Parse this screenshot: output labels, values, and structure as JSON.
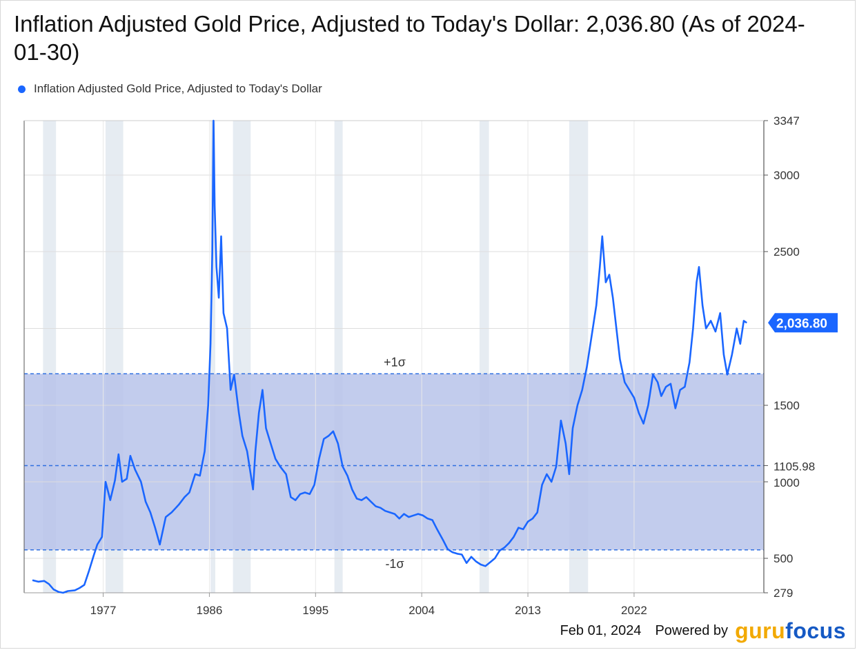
{
  "title": "Inflation Adjusted Gold Price, Adjusted to Today's Dollar: 2,036.80 (As of 2024-01-30)",
  "legend_label": "Inflation Adjusted Gold Price, Adjusted to Today's Dollar",
  "footer": {
    "date": "Feb 01, 2024",
    "powered_by": "Powered by",
    "logo_part1": "guru",
    "logo_part2": "focus"
  },
  "colors": {
    "line": "#1a66ff",
    "band": "#b7c3ea",
    "recession": "#e6ecf2",
    "dashed": "#2f6fe0",
    "callout": "#1a66ff"
  },
  "chart_data": {
    "type": "line",
    "title": "Inflation Adjusted Gold Price, Adjusted to Today's Dollar: 2,036.80 (As of 2024-01-30)",
    "series": [
      {
        "name": "Inflation Adjusted Gold Price, Adjusted to Today's Dollar",
        "points": [
          [
            1971.0,
            360
          ],
          [
            1971.5,
            350
          ],
          [
            1972.0,
            355
          ],
          [
            1972.4,
            335
          ],
          [
            1972.8,
            300
          ],
          [
            1973.2,
            285
          ],
          [
            1973.6,
            279
          ],
          [
            1974.0,
            290
          ],
          [
            1974.6,
            295
          ],
          [
            1975.0,
            310
          ],
          [
            1975.4,
            330
          ],
          [
            1975.8,
            420
          ],
          [
            1976.2,
            520
          ],
          [
            1976.5,
            590
          ],
          [
            1976.9,
            640
          ],
          [
            1977.2,
            1000
          ],
          [
            1977.6,
            880
          ],
          [
            1978.0,
            1010
          ],
          [
            1978.3,
            1180
          ],
          [
            1978.6,
            1000
          ],
          [
            1979.0,
            1020
          ],
          [
            1979.3,
            1170
          ],
          [
            1979.7,
            1080
          ],
          [
            1980.2,
            1000
          ],
          [
            1980.6,
            870
          ],
          [
            1981.0,
            800
          ],
          [
            1981.4,
            700
          ],
          [
            1981.8,
            590
          ],
          [
            1982.3,
            770
          ],
          [
            1982.8,
            800
          ],
          [
            1983.4,
            850
          ],
          [
            1983.9,
            900
          ],
          [
            1984.3,
            930
          ],
          [
            1984.8,
            1050
          ],
          [
            1985.2,
            1040
          ],
          [
            1985.6,
            1200
          ],
          [
            1985.9,
            1500
          ],
          [
            1986.1,
            1900
          ],
          [
            1986.25,
            2500
          ],
          [
            1986.35,
            3347
          ],
          [
            1986.45,
            2800
          ],
          [
            1986.6,
            2400
          ],
          [
            1986.8,
            2200
          ],
          [
            1987.0,
            2600
          ],
          [
            1987.2,
            2100
          ],
          [
            1987.5,
            2000
          ],
          [
            1987.8,
            1600
          ],
          [
            1988.1,
            1700
          ],
          [
            1988.5,
            1450
          ],
          [
            1988.8,
            1300
          ],
          [
            1989.2,
            1200
          ],
          [
            1989.5,
            1050
          ],
          [
            1989.7,
            950
          ],
          [
            1989.9,
            1200
          ],
          [
            1990.2,
            1450
          ],
          [
            1990.5,
            1600
          ],
          [
            1990.8,
            1350
          ],
          [
            1991.2,
            1250
          ],
          [
            1991.6,
            1150
          ],
          [
            1992.0,
            1100
          ],
          [
            1992.5,
            1050
          ],
          [
            1992.9,
            900
          ],
          [
            1993.3,
            880
          ],
          [
            1993.7,
            920
          ],
          [
            1994.1,
            930
          ],
          [
            1994.5,
            920
          ],
          [
            1994.9,
            980
          ],
          [
            1995.3,
            1150
          ],
          [
            1995.7,
            1280
          ],
          [
            1996.1,
            1300
          ],
          [
            1996.5,
            1330
          ],
          [
            1996.9,
            1250
          ],
          [
            1997.3,
            1100
          ],
          [
            1997.7,
            1040
          ],
          [
            1998.1,
            950
          ],
          [
            1998.5,
            890
          ],
          [
            1998.9,
            880
          ],
          [
            1999.3,
            900
          ],
          [
            1999.7,
            870
          ],
          [
            2000.1,
            840
          ],
          [
            2000.5,
            830
          ],
          [
            2000.9,
            810
          ],
          [
            2001.3,
            800
          ],
          [
            2001.7,
            790
          ],
          [
            2002.1,
            760
          ],
          [
            2002.5,
            790
          ],
          [
            2002.9,
            770
          ],
          [
            2003.3,
            780
          ],
          [
            2003.7,
            790
          ],
          [
            2004.1,
            780
          ],
          [
            2004.5,
            760
          ],
          [
            2004.9,
            750
          ],
          [
            2005.3,
            690
          ],
          [
            2005.8,
            620
          ],
          [
            2006.2,
            560
          ],
          [
            2006.6,
            540
          ],
          [
            2007.0,
            530
          ],
          [
            2007.4,
            525
          ],
          [
            2007.8,
            470
          ],
          [
            2008.2,
            510
          ],
          [
            2008.6,
            480
          ],
          [
            2009.0,
            460
          ],
          [
            2009.4,
            450
          ],
          [
            2009.8,
            475
          ],
          [
            2010.2,
            500
          ],
          [
            2010.6,
            550
          ],
          [
            2011.0,
            570
          ],
          [
            2011.4,
            600
          ],
          [
            2011.8,
            640
          ],
          [
            2012.2,
            700
          ],
          [
            2012.6,
            690
          ],
          [
            2013.0,
            740
          ],
          [
            2013.4,
            760
          ],
          [
            2013.8,
            800
          ],
          [
            2014.2,
            980
          ],
          [
            2014.6,
            1050
          ],
          [
            2015.0,
            1000
          ],
          [
            2015.4,
            1100
          ],
          [
            2015.8,
            1400
          ],
          [
            2016.2,
            1250
          ],
          [
            2016.5,
            1050
          ],
          [
            2016.8,
            1350
          ],
          [
            2017.2,
            1500
          ],
          [
            2017.6,
            1600
          ],
          [
            2018.0,
            1750
          ],
          [
            2018.4,
            1950
          ],
          [
            2018.8,
            2150
          ],
          [
            2019.1,
            2400
          ],
          [
            2019.3,
            2600
          ],
          [
            2019.6,
            2300
          ],
          [
            2019.9,
            2350
          ],
          [
            2020.2,
            2200
          ],
          [
            2020.5,
            2000
          ],
          [
            2020.8,
            1800
          ],
          [
            2021.2,
            1650
          ],
          [
            2021.6,
            1600
          ],
          [
            2022.0,
            1550
          ],
          [
            2022.4,
            1450
          ],
          [
            2022.8,
            1380
          ],
          [
            2023.2,
            1500
          ],
          [
            2023.6,
            1700
          ],
          [
            2024.0,
            1650
          ],
          [
            2024.3,
            1560
          ],
          [
            2024.7,
            1620
          ],
          [
            2025.1,
            1640
          ],
          [
            2025.5,
            1480
          ],
          [
            2025.9,
            1600
          ],
          [
            2026.3,
            1620
          ],
          [
            2026.7,
            1780
          ],
          [
            2027.0,
            2000
          ],
          [
            2027.3,
            2300
          ],
          [
            2027.5,
            2400
          ],
          [
            2027.8,
            2150
          ],
          [
            2028.1,
            2000
          ],
          [
            2028.5,
            2050
          ],
          [
            2028.9,
            1980
          ],
          [
            2029.3,
            2100
          ],
          [
            2029.6,
            1830
          ],
          [
            2029.9,
            1700
          ],
          [
            2030.3,
            1830
          ],
          [
            2030.7,
            2000
          ],
          [
            2031.0,
            1900
          ],
          [
            2031.3,
            2050
          ],
          [
            2031.55,
            2036.8
          ]
        ]
      }
    ],
    "x_tick_labels": [
      "1977",
      "1986",
      "1995",
      "2004",
      "2013",
      "2022"
    ],
    "y_tick_labels": [
      "3347",
      "3000",
      "2500",
      "1500",
      "1105.98",
      "1000",
      "500",
      "279"
    ],
    "band_lines": [
      {
        "label": "+1σ",
        "value": 1705
      },
      {
        "label": "",
        "value": 1105.98
      },
      {
        "label": "-1σ",
        "value": 555
      }
    ],
    "last_value_label": "2,036.80",
    "legend": "top-left",
    "grid": true
  }
}
